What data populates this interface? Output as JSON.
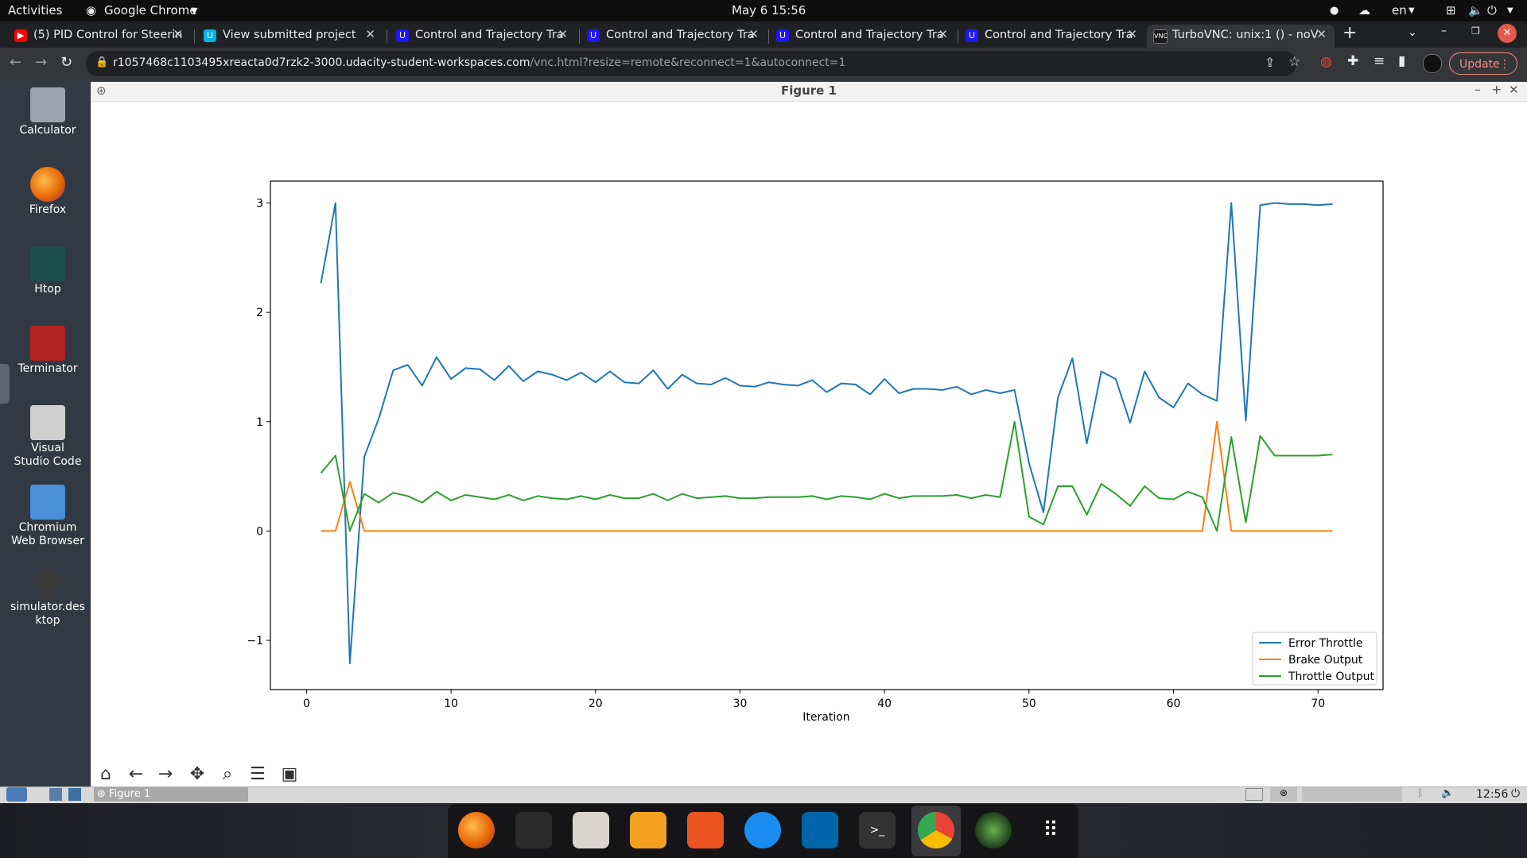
{
  "gnome_bar": {
    "activities": "Activities",
    "app_name": "Google Chrome",
    "clock": "May 6  15:56",
    "lang": "en"
  },
  "tabs": [
    {
      "label": "(5) PID Control for Steerin",
      "fav_color": "#ff0000"
    },
    {
      "label": "View submitted project",
      "fav_color": "#02b3e4"
    },
    {
      "label": "Control and Trajectory Tra",
      "fav_color": "#2015ff"
    },
    {
      "label": "Control and Trajectory Tra",
      "fav_color": "#2015ff"
    },
    {
      "label": "Control and Trajectory Tra",
      "fav_color": "#2015ff"
    },
    {
      "label": "Control and Trajectory Tra",
      "fav_color": "#2015ff"
    },
    {
      "label": "TurboVNC: unix:1 () - noV",
      "fav_color": "#1a1a1a"
    }
  ],
  "address": {
    "host": "r1057468c1103495xreacta0d7rzk2-3000.udacity-student-workspaces.com",
    "path": "/vnc.html?resize=remote&reconnect=1&autoconnect=1",
    "update_label": "Update"
  },
  "desktop_icons": [
    {
      "label": "Calculator",
      "color": "#9aa3ad"
    },
    {
      "label": "Firefox",
      "color": "#e66000"
    },
    {
      "label": "Htop",
      "color": "#1e4f4f"
    },
    {
      "label": "Terminator",
      "color": "#b22222"
    },
    {
      "label": "Visual Studio Code",
      "color": "#cfcfcf"
    },
    {
      "label": "Chromium Web Browser",
      "color": "#4a90d9"
    },
    {
      "label": "simulator.desktop",
      "color": "#3a3a3a"
    }
  ],
  "figure": {
    "title": "Figure 1"
  },
  "lxpanel": {
    "task_label": "Figure 1",
    "clock": "12:56"
  },
  "chart_data": {
    "type": "line",
    "title": "",
    "xlabel": "Iteration",
    "ylabel": "",
    "xlim": [
      -2.5,
      74.5
    ],
    "ylim": [
      -1.45,
      3.2
    ],
    "xticks": [
      0,
      10,
      20,
      30,
      40,
      50,
      60,
      70
    ],
    "yticks": [
      -1,
      0,
      1,
      2,
      3
    ],
    "legend_position": "bottom-right",
    "grid": false,
    "series": [
      {
        "name": "Error Throttle",
        "color": "#1f77b4",
        "x": [
          1,
          2,
          3,
          4,
          5,
          6,
          7,
          8,
          9,
          10,
          11,
          12,
          13,
          14,
          15,
          16,
          17,
          18,
          19,
          20,
          21,
          22,
          23,
          24,
          25,
          26,
          27,
          28,
          29,
          30,
          31,
          32,
          33,
          34,
          35,
          36,
          37,
          38,
          39,
          40,
          41,
          42,
          43,
          44,
          45,
          46,
          47,
          48,
          49,
          50,
          51,
          52,
          53,
          54,
          55,
          56,
          57,
          58,
          59,
          60,
          61,
          62,
          63,
          64,
          65,
          66,
          67,
          68,
          69,
          70,
          71
        ],
        "values": [
          2.27,
          3.0,
          -1.21,
          0.68,
          1.03,
          1.47,
          1.52,
          1.33,
          1.59,
          1.39,
          1.49,
          1.48,
          1.38,
          1.51,
          1.37,
          1.46,
          1.43,
          1.38,
          1.45,
          1.36,
          1.46,
          1.36,
          1.35,
          1.47,
          1.3,
          1.43,
          1.35,
          1.34,
          1.4,
          1.33,
          1.32,
          1.36,
          1.34,
          1.33,
          1.38,
          1.27,
          1.35,
          1.34,
          1.25,
          1.39,
          1.26,
          1.3,
          1.3,
          1.29,
          1.32,
          1.25,
          1.29,
          1.26,
          1.29,
          0.62,
          0.17,
          1.22,
          1.58,
          0.8,
          1.46,
          1.39,
          0.99,
          1.46,
          1.22,
          1.13,
          1.35,
          1.25,
          1.19,
          3.0,
          1.01,
          2.98,
          3.0,
          2.99,
          2.99,
          2.98,
          2.99
        ]
      },
      {
        "name": "Brake Output",
        "color": "#ff7f0e",
        "x": [
          1,
          2,
          3,
          4,
          5,
          10,
          20,
          30,
          40,
          50,
          60,
          62,
          63,
          64,
          65,
          70,
          71
        ],
        "values": [
          0,
          0,
          0.45,
          0,
          0,
          0,
          0,
          0,
          0,
          0,
          0,
          0,
          1.0,
          0,
          0,
          0,
          0
        ]
      },
      {
        "name": "Throttle Output",
        "color": "#2ca02c",
        "x": [
          1,
          2,
          3,
          4,
          5,
          6,
          7,
          8,
          9,
          10,
          11,
          12,
          13,
          14,
          15,
          16,
          17,
          18,
          19,
          20,
          21,
          22,
          23,
          24,
          25,
          26,
          27,
          28,
          29,
          30,
          31,
          32,
          33,
          34,
          35,
          36,
          37,
          38,
          39,
          40,
          41,
          42,
          43,
          44,
          45,
          46,
          47,
          48,
          49,
          50,
          51,
          52,
          53,
          54,
          55,
          56,
          57,
          58,
          59,
          60,
          61,
          62,
          63,
          64,
          65,
          66,
          67,
          68,
          69,
          70,
          71
        ],
        "values": [
          0.53,
          0.69,
          0.0,
          0.34,
          0.26,
          0.35,
          0.32,
          0.26,
          0.36,
          0.28,
          0.33,
          0.31,
          0.29,
          0.33,
          0.28,
          0.32,
          0.3,
          0.29,
          0.32,
          0.29,
          0.33,
          0.3,
          0.3,
          0.34,
          0.28,
          0.34,
          0.3,
          0.31,
          0.32,
          0.3,
          0.3,
          0.31,
          0.31,
          0.31,
          0.32,
          0.29,
          0.32,
          0.31,
          0.29,
          0.34,
          0.3,
          0.32,
          0.32,
          0.32,
          0.33,
          0.3,
          0.33,
          0.31,
          1.0,
          0.13,
          0.06,
          0.41,
          0.41,
          0.15,
          0.43,
          0.34,
          0.23,
          0.41,
          0.3,
          0.29,
          0.36,
          0.31,
          0.0,
          0.86,
          0.08,
          0.87,
          0.69,
          0.69,
          0.69,
          0.69,
          0.7
        ]
      }
    ]
  }
}
